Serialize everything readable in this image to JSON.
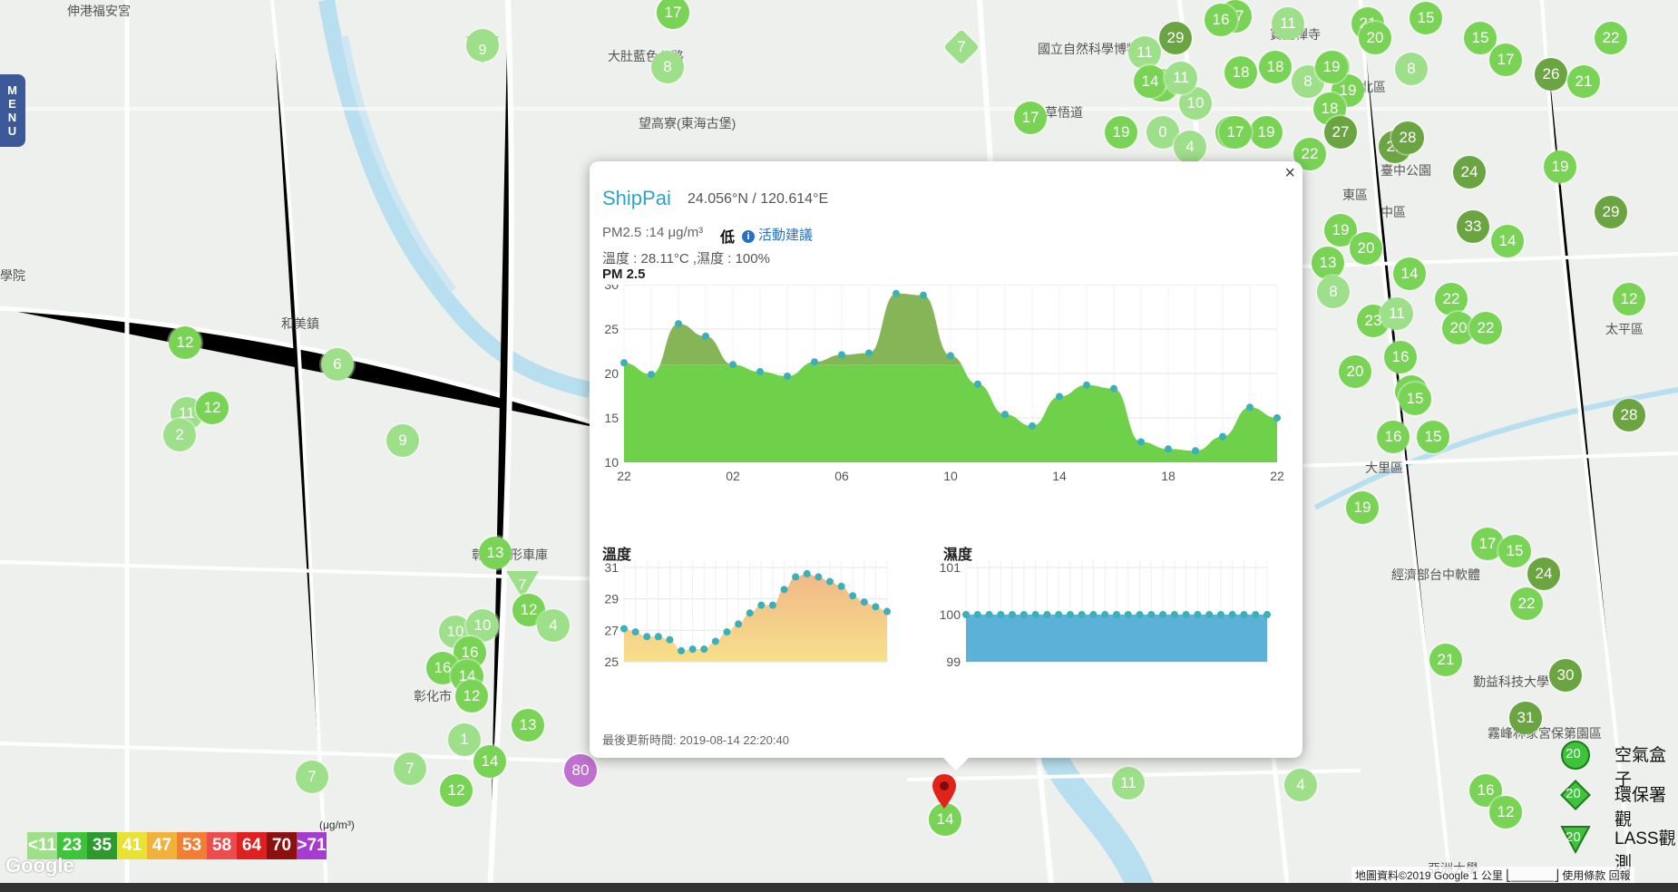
{
  "map": {
    "place_labels": [
      {
        "text": "伸港福安宮",
        "cls": "pl1"
      },
      {
        "text": "大肚藍色公路",
        "cls": "pl2"
      },
      {
        "text": "望高寮(東海古堡)",
        "cls": "pl3"
      },
      {
        "text": "和美鎮",
        "cls": "pl4"
      },
      {
        "text": "學院",
        "cls": "pl5"
      },
      {
        "text": "彰化扇形車庫",
        "cls": "pl6"
      },
      {
        "text": "國立自然科學博物館",
        "cls": "pl7"
      },
      {
        "text": "北區",
        "cls": "pl8"
      },
      {
        "text": "草悟道",
        "cls": "pl9"
      },
      {
        "text": "臺中公園",
        "cls": "pl10"
      },
      {
        "text": "東區",
        "cls": "pl11"
      },
      {
        "text": "中區",
        "cls": "pl12"
      },
      {
        "text": "太平區",
        "cls": "pl13"
      },
      {
        "text": "大里區",
        "cls": "pl14"
      },
      {
        "text": "霧峰林家宮保第園區",
        "cls": "pl15"
      },
      {
        "text": "亞洲大學",
        "cls": "pl16"
      },
      {
        "text": "勤益科技大學",
        "cls": "pl17"
      },
      {
        "text": "經濟部台中軟體",
        "cls": "pl18"
      },
      {
        "text": "彰化市",
        "cls": "pl19"
      },
      {
        "text": "寶覺禪寺",
        "cls": "pl20"
      }
    ],
    "markers": [
      {
        "v": "15",
        "c": "#79d355",
        "kind": "c"
      },
      {
        "v": "9",
        "c": "#9ee08a",
        "kind": "c"
      },
      {
        "v": "8",
        "c": "#9ee08a",
        "kind": "c"
      },
      {
        "v": "7",
        "c": "#9ee08a",
        "kind": "sq"
      },
      {
        "v": "29",
        "c": "#6aa542",
        "kind": "c"
      },
      {
        "v": "17",
        "c": "#79d355",
        "kind": "c"
      },
      {
        "v": "11",
        "c": "#9ee08a",
        "kind": "c"
      },
      {
        "v": "21",
        "c": "#79d355",
        "kind": "c"
      },
      {
        "v": "20",
        "c": "#79d355",
        "kind": "c"
      },
      {
        "v": "15",
        "c": "#79d355",
        "kind": "c"
      },
      {
        "v": "22",
        "c": "#79d355",
        "kind": "c"
      },
      {
        "v": "17",
        "c": "#79d355",
        "kind": "c"
      },
      {
        "v": "26",
        "c": "#6aa542",
        "kind": "c"
      },
      {
        "v": "21",
        "c": "#79d355",
        "kind": "c"
      },
      {
        "v": "18",
        "c": "#79d355",
        "kind": "c"
      },
      {
        "v": "18",
        "c": "#79d355",
        "kind": "c"
      },
      {
        "v": "8",
        "c": "#9ee08a",
        "kind": "c"
      },
      {
        "v": "17",
        "c": "#79d355",
        "kind": "c"
      },
      {
        "v": "19",
        "c": "#79d355",
        "kind": "c"
      },
      {
        "v": "8",
        "c": "#9ee08a",
        "kind": "c"
      },
      {
        "v": "17",
        "c": "#79d355",
        "kind": "c"
      },
      {
        "v": "17",
        "c": "#79d355",
        "kind": "c"
      },
      {
        "v": "10",
        "c": "#9ee08a",
        "kind": "c"
      },
      {
        "v": "15",
        "c": "#79d355",
        "kind": "c"
      },
      {
        "v": "19",
        "c": "#79d355",
        "kind": "c"
      },
      {
        "v": "16",
        "c": "#79d355",
        "kind": "c"
      },
      {
        "v": "11",
        "c": "#9ee08a",
        "kind": "c"
      },
      {
        "v": "17",
        "c": "#79d355",
        "kind": "c"
      },
      {
        "v": "17",
        "c": "#79d355",
        "kind": "c"
      },
      {
        "v": "19",
        "c": "#79d355",
        "kind": "c"
      },
      {
        "v": "19",
        "c": "#79d355",
        "kind": "c"
      },
      {
        "v": "0",
        "c": "#9ee08a",
        "kind": "c"
      },
      {
        "v": "4",
        "c": "#9ee08a",
        "kind": "c"
      },
      {
        "v": "17",
        "c": "#79d355",
        "kind": "c"
      },
      {
        "v": "18",
        "c": "#79d355",
        "kind": "c"
      },
      {
        "v": "27",
        "c": "#6aa542",
        "kind": "c"
      },
      {
        "v": "22",
        "c": "#79d355",
        "kind": "c"
      },
      {
        "v": "29",
        "c": "#6aa542",
        "kind": "c"
      },
      {
        "v": "28",
        "c": "#6aa542",
        "kind": "c"
      },
      {
        "v": "24",
        "c": "#6aa542",
        "kind": "c"
      },
      {
        "v": "29",
        "c": "#6aa542",
        "kind": "c"
      },
      {
        "v": "33",
        "c": "#6aa542",
        "kind": "c"
      },
      {
        "v": "14",
        "c": "#79d355",
        "kind": "c"
      },
      {
        "v": "19",
        "c": "#79d355",
        "kind": "c"
      },
      {
        "v": "20",
        "c": "#79d355",
        "kind": "c"
      },
      {
        "v": "13",
        "c": "#79d355",
        "kind": "c"
      },
      {
        "v": "8",
        "c": "#9ee08a",
        "kind": "c"
      },
      {
        "v": "14",
        "c": "#79d355",
        "kind": "c"
      },
      {
        "v": "22",
        "c": "#79d355",
        "kind": "c"
      },
      {
        "v": "23",
        "c": "#79d355",
        "kind": "c"
      },
      {
        "v": "11",
        "c": "#9ee08a",
        "kind": "c"
      },
      {
        "v": "20",
        "c": "#79d355",
        "kind": "c"
      },
      {
        "v": "22",
        "c": "#79d355",
        "kind": "c"
      },
      {
        "v": "20",
        "c": "#79d355",
        "kind": "c"
      },
      {
        "v": "16",
        "c": "#79d355",
        "kind": "c"
      },
      {
        "v": "19",
        "c": "#79d355",
        "kind": "c"
      },
      {
        "v": "12",
        "c": "#79d355",
        "kind": "c"
      },
      {
        "v": "7",
        "c": "#9ee08a",
        "kind": "c"
      },
      {
        "v": "28",
        "c": "#6aa542",
        "kind": "c"
      },
      {
        "v": "16",
        "c": "#79d355",
        "kind": "c"
      },
      {
        "v": "15",
        "c": "#79d355",
        "kind": "c"
      },
      {
        "v": "19",
        "c": "#79d355",
        "kind": "c"
      },
      {
        "v": "17",
        "c": "#79d355",
        "kind": "c"
      },
      {
        "v": "15",
        "c": "#79d355",
        "kind": "c"
      },
      {
        "v": "24",
        "c": "#6aa542",
        "kind": "c"
      },
      {
        "v": "22",
        "c": "#79d355",
        "kind": "c"
      },
      {
        "v": "21",
        "c": "#79d355",
        "kind": "c"
      },
      {
        "v": "30",
        "c": "#6aa542",
        "kind": "c"
      },
      {
        "v": "31",
        "c": "#6aa542",
        "kind": "c"
      },
      {
        "v": "16",
        "c": "#79d355",
        "kind": "c"
      },
      {
        "v": "12",
        "c": "#79d355",
        "kind": "c"
      },
      {
        "v": "11",
        "c": "#9ee08a",
        "kind": "c"
      },
      {
        "v": "4",
        "c": "#9ee08a",
        "kind": "c"
      },
      {
        "v": "14",
        "c": "#79d355",
        "kind": "c"
      },
      {
        "v": "19",
        "c": "#79d355",
        "kind": "c"
      },
      {
        "v": "16",
        "c": "#79d355",
        "kind": "c"
      },
      {
        "v": "12",
        "c": "#79d355",
        "kind": "c"
      },
      {
        "v": "11",
        "c": "#9ee08a",
        "kind": "c"
      },
      {
        "v": "12",
        "c": "#79d355",
        "kind": "c"
      },
      {
        "v": "2",
        "c": "#9ee08a",
        "kind": "c"
      },
      {
        "v": "6",
        "c": "#9ee08a",
        "kind": "c"
      },
      {
        "v": "9",
        "c": "#9ee08a",
        "kind": "c"
      },
      {
        "v": "13",
        "c": "#79d355",
        "kind": "c"
      },
      {
        "v": "7",
        "c": "#9ee08a",
        "kind": "tri"
      },
      {
        "v": "12",
        "c": "#79d355",
        "kind": "c"
      },
      {
        "v": "4",
        "c": "#9ee08a",
        "kind": "c"
      },
      {
        "v": "10",
        "c": "#9ee08a",
        "kind": "c"
      },
      {
        "v": "10",
        "c": "#9ee08a",
        "kind": "c"
      },
      {
        "v": "16",
        "c": "#79d355",
        "kind": "c"
      },
      {
        "v": "16",
        "c": "#79d355",
        "kind": "c"
      },
      {
        "v": "14",
        "c": "#79d355",
        "kind": "c"
      },
      {
        "v": "12",
        "c": "#79d355",
        "kind": "c"
      },
      {
        "v": "13",
        "c": "#79d355",
        "kind": "c"
      },
      {
        "v": "1",
        "c": "#9ee08a",
        "kind": "c"
      },
      {
        "v": "14",
        "c": "#79d355",
        "kind": "c"
      },
      {
        "v": "7",
        "c": "#9ee08a",
        "kind": "c"
      },
      {
        "v": "7",
        "c": "#9ee08a",
        "kind": "c"
      },
      {
        "v": "12",
        "c": "#79d355",
        "kind": "c"
      },
      {
        "v": "80",
        "c": "#c070d0",
        "kind": "c"
      },
      {
        "v": "15",
        "c": "#79d355",
        "kind": "c"
      },
      {
        "v": "19",
        "c": "#79d355",
        "kind": "c"
      },
      {
        "v": "16",
        "c": "#79d355",
        "kind": "c"
      },
      {
        "v": "14",
        "c": "#79d355",
        "kind": "c"
      },
      {
        "v": "11",
        "c": "#9ee08a",
        "kind": "c"
      },
      {
        "v": "17",
        "c": "#79d355",
        "kind": "c"
      },
      {
        "v": "9",
        "c": "#9ee08a",
        "kind": "tri"
      }
    ]
  },
  "menu": {
    "letters": [
      "M",
      "E",
      "N",
      "U"
    ]
  },
  "popup": {
    "close_glyph": "×",
    "station_name": "ShipPai",
    "coords": "24.056°N / 120.614°E",
    "pm_text": "PM2.5 :14 μg/m³",
    "level": "低",
    "advice_icon": "i",
    "advice_link": "活動建議",
    "env_text": "溫度 : 28.11°C ,濕度 : 100%",
    "pm_title": "PM 2.5",
    "temp_title": "溫度",
    "hum_title": "濕度",
    "updated": "最後更新時間: 2019-08-14 22:20:40"
  },
  "chart_data": [
    {
      "type": "area",
      "title": "PM 2.5",
      "x_ticks": [
        "22",
        "02",
        "06",
        "10",
        "14",
        "18",
        "22"
      ],
      "ylim": [
        10,
        30
      ],
      "y_ticks": [
        "10",
        "15",
        "20",
        "25",
        "30"
      ],
      "values": [
        21.2,
        19.9,
        25.6,
        24.2,
        21.0,
        20.2,
        19.7,
        21.3,
        22.1,
        22.3,
        29.0,
        28.8,
        22.0,
        18.8,
        15.4,
        14.1,
        17.4,
        18.7,
        18.3,
        12.3,
        11.5,
        11.3,
        12.9,
        16.2,
        15.0
      ],
      "colors": {
        "above": "#86b557",
        "below": "#6fd14a",
        "threshold": 21
      }
    },
    {
      "type": "area",
      "title": "溫度",
      "ylim": [
        25,
        31
      ],
      "y_ticks": [
        "25",
        "27",
        "29",
        "31"
      ],
      "values": [
        27.1,
        26.9,
        26.6,
        26.6,
        26.4,
        25.7,
        25.8,
        25.8,
        26.3,
        26.9,
        27.4,
        28.1,
        28.6,
        28.6,
        29.6,
        30.4,
        30.6,
        30.4,
        30.1,
        29.8,
        29.2,
        28.8,
        28.5,
        28.2
      ],
      "colors": {
        "top": "#f0b888",
        "bottom": "#f7e08a",
        "line": "#3cb0b8"
      }
    },
    {
      "type": "area",
      "title": "濕度",
      "ylim": [
        99,
        101
      ],
      "y_ticks": [
        "99",
        "100",
        "101"
      ],
      "values": [
        100,
        100,
        100,
        100,
        100,
        100,
        100,
        100,
        100,
        100,
        100,
        100,
        100,
        100,
        100,
        100,
        100,
        100,
        100,
        100,
        100,
        100,
        100,
        100,
        100,
        100,
        100
      ],
      "colors": {
        "fill": "#5bb1d8",
        "line": "#3cb0b8"
      }
    }
  ],
  "legend": {
    "scale": [
      {
        "label": "<11",
        "color": "#9ee08a"
      },
      {
        "label": "23",
        "color": "#3ec43a"
      },
      {
        "label": "35",
        "color": "#2c9a2c"
      },
      {
        "label": "41",
        "color": "#e7e233"
      },
      {
        "label": "47",
        "color": "#f2b13b"
      },
      {
        "label": "53",
        "color": "#f27d33"
      },
      {
        "label": "58",
        "color": "#ee4c4c"
      },
      {
        "label": "64",
        "color": "#e01f1f"
      },
      {
        "label": "70",
        "color": "#8c1010"
      },
      {
        "label": ">71",
        "color": "#a63bd2"
      }
    ],
    "unit": "(μg/m³)",
    "types": [
      {
        "label": "空氣盒子",
        "value": "20"
      },
      {
        "label": "環保署觀",
        "value": "20"
      },
      {
        "label": "LASS觀測",
        "value": "20"
      }
    ]
  },
  "footer": {
    "google": "Google",
    "attribution": "地圖資料©2019 Google   1 公里 ⎣_______⎦   使用條款   回報"
  },
  "pin_value": "14"
}
